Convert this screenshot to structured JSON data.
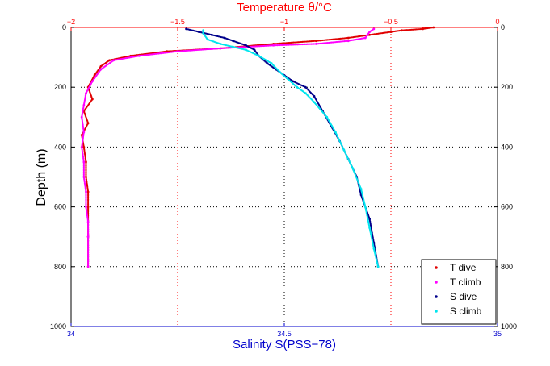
{
  "colors": {
    "temperature_axis": "#ff0000",
    "salinity_axis": "#0000cc",
    "t_dive": "#e00000",
    "t_climb": "#ff00ff",
    "s_dive": "#00008b",
    "s_climb": "#00e5ee"
  },
  "chart_data": {
    "type": "scatter",
    "title_top": "Temperature θ/°C",
    "xlabel_bottom": "Salinity S(PSS−78)",
    "ylabel": "Depth (m)",
    "grid": true,
    "legend_position": "bottom-right",
    "y_axis": {
      "range": [
        0,
        1000
      ],
      "reversed": true,
      "ticks": [
        "0",
        "200",
        "400",
        "600",
        "800",
        "1000"
      ]
    },
    "x_bottom_axis": {
      "range": [
        34,
        35
      ],
      "ticks": [
        "34",
        "34.5",
        "35"
      ],
      "grid_values": [
        34.25,
        34.75
      ]
    },
    "x_top_axis": {
      "range": [
        -2,
        0
      ],
      "ticks": [
        "−2",
        "−1.5",
        "−1",
        "−0.5",
        "0"
      ],
      "values": [
        -2,
        -1.5,
        -1,
        -0.5,
        0
      ]
    },
    "series": [
      {
        "name": "T dive",
        "axis": "temperature",
        "x": [
          -0.3,
          -0.35,
          -0.45,
          -0.5,
          -0.6,
          -0.7,
          -0.85,
          -1.05,
          -1.3,
          -1.55,
          -1.72,
          -1.82,
          -1.86,
          -1.89,
          -1.92,
          -1.9,
          -1.94,
          -1.92,
          -1.95,
          -1.94,
          -1.93,
          -1.93,
          -1.92,
          -1.92,
          -1.92,
          -1.92
        ],
        "y": [
          0,
          5,
          10,
          15,
          25,
          35,
          45,
          55,
          70,
          80,
          95,
          110,
          130,
          160,
          200,
          240,
          280,
          320,
          360,
          400,
          450,
          500,
          550,
          600,
          700,
          800
        ]
      },
      {
        "name": "T climb",
        "axis": "temperature",
        "x": [
          -0.58,
          -0.6,
          -0.62,
          -0.7,
          -0.85,
          -1.05,
          -1.3,
          -1.5,
          -1.68,
          -1.8,
          -1.86,
          -1.9,
          -1.93,
          -1.94,
          -1.95,
          -1.94,
          -1.95,
          -1.94,
          -1.94,
          -1.93,
          -1.93,
          -1.92,
          -1.92,
          -1.92
        ],
        "y": [
          5,
          15,
          35,
          45,
          55,
          60,
          70,
          80,
          95,
          110,
          140,
          180,
          220,
          260,
          300,
          350,
          400,
          450,
          500,
          550,
          600,
          650,
          700,
          800
        ]
      },
      {
        "name": "S dive",
        "axis": "salinity",
        "x": [
          34.27,
          34.3,
          34.33,
          34.36,
          34.38,
          34.41,
          34.43,
          34.44,
          34.46,
          34.48,
          34.5,
          34.52,
          34.55,
          34.57,
          34.59,
          34.61,
          34.63,
          34.65,
          34.67,
          34.68,
          34.7,
          34.71,
          34.72
        ],
        "y": [
          5,
          15,
          25,
          35,
          45,
          60,
          75,
          95,
          120,
          140,
          160,
          180,
          200,
          230,
          280,
          330,
          380,
          440,
          500,
          560,
          640,
          720,
          800
        ]
      },
      {
        "name": "S climb",
        "axis": "salinity",
        "x": [
          34.31,
          34.31,
          34.32,
          34.35,
          34.38,
          34.41,
          34.44,
          34.47,
          34.49,
          34.51,
          34.53,
          34.55,
          34.57,
          34.6,
          34.62,
          34.64,
          34.66,
          34.68,
          34.69,
          34.7,
          34.71,
          34.72
        ],
        "y": [
          10,
          20,
          40,
          55,
          65,
          75,
          95,
          120,
          150,
          175,
          200,
          220,
          250,
          300,
          350,
          410,
          470,
          540,
          600,
          670,
          740,
          800
        ]
      }
    ]
  }
}
